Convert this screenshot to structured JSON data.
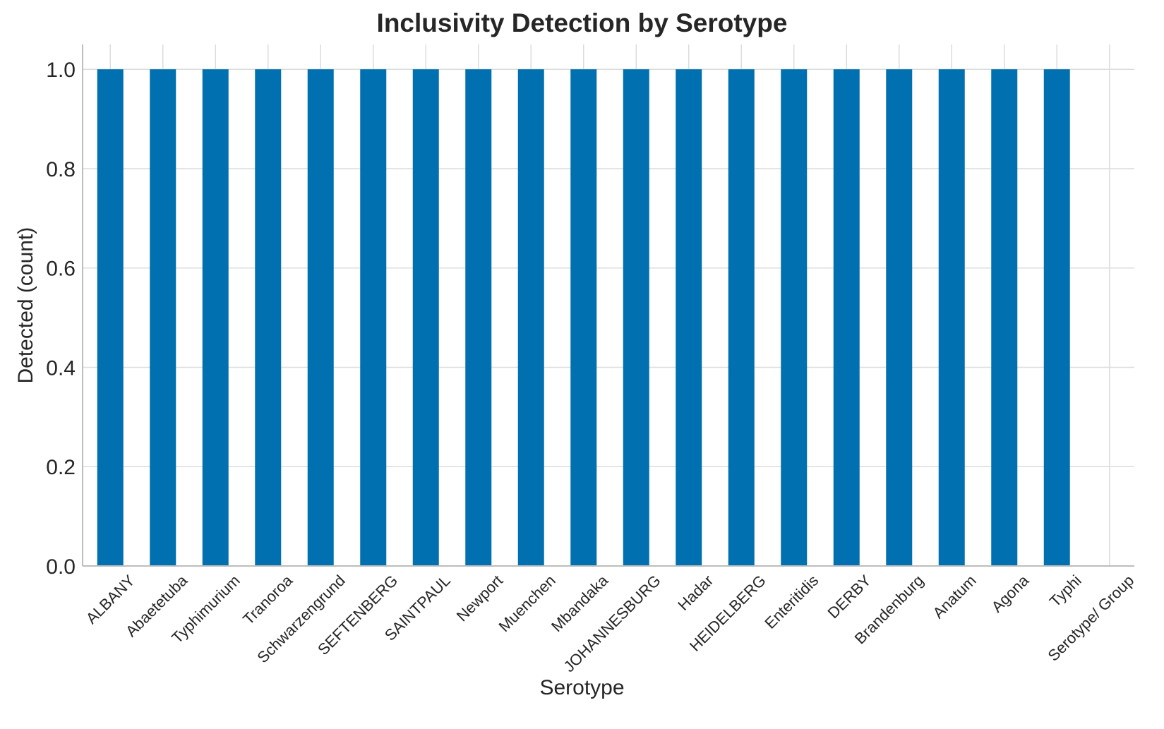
{
  "chart_data": {
    "type": "bar",
    "title": "Inclusivity Detection by Serotype",
    "xlabel": "Serotype",
    "ylabel": "Detected (count)",
    "categories": [
      "ALBANY",
      "Abaetetuba",
      "Typhimurium",
      "Tranoroa",
      "Schwarzengrund",
      "SEFTENBERG",
      "SAINTPAUL",
      "Newport",
      "Muenchen",
      "Mbandaka",
      "JOHANNESBURG",
      "Hadar",
      "HEIDELBERG",
      "Enteritidis",
      "DERBY",
      "Brandenburg",
      "Anatum",
      "Agona",
      "Typhi",
      "Serotype/ Group"
    ],
    "values": [
      1,
      1,
      1,
      1,
      1,
      1,
      1,
      1,
      1,
      1,
      1,
      1,
      1,
      1,
      1,
      1,
      1,
      1,
      1,
      0
    ],
    "yticks": [
      "0.0",
      "0.2",
      "0.4",
      "0.6",
      "0.8",
      "1.0"
    ],
    "ylim": [
      0,
      1.05
    ],
    "grid": true,
    "bar_color": "#0070b0"
  }
}
